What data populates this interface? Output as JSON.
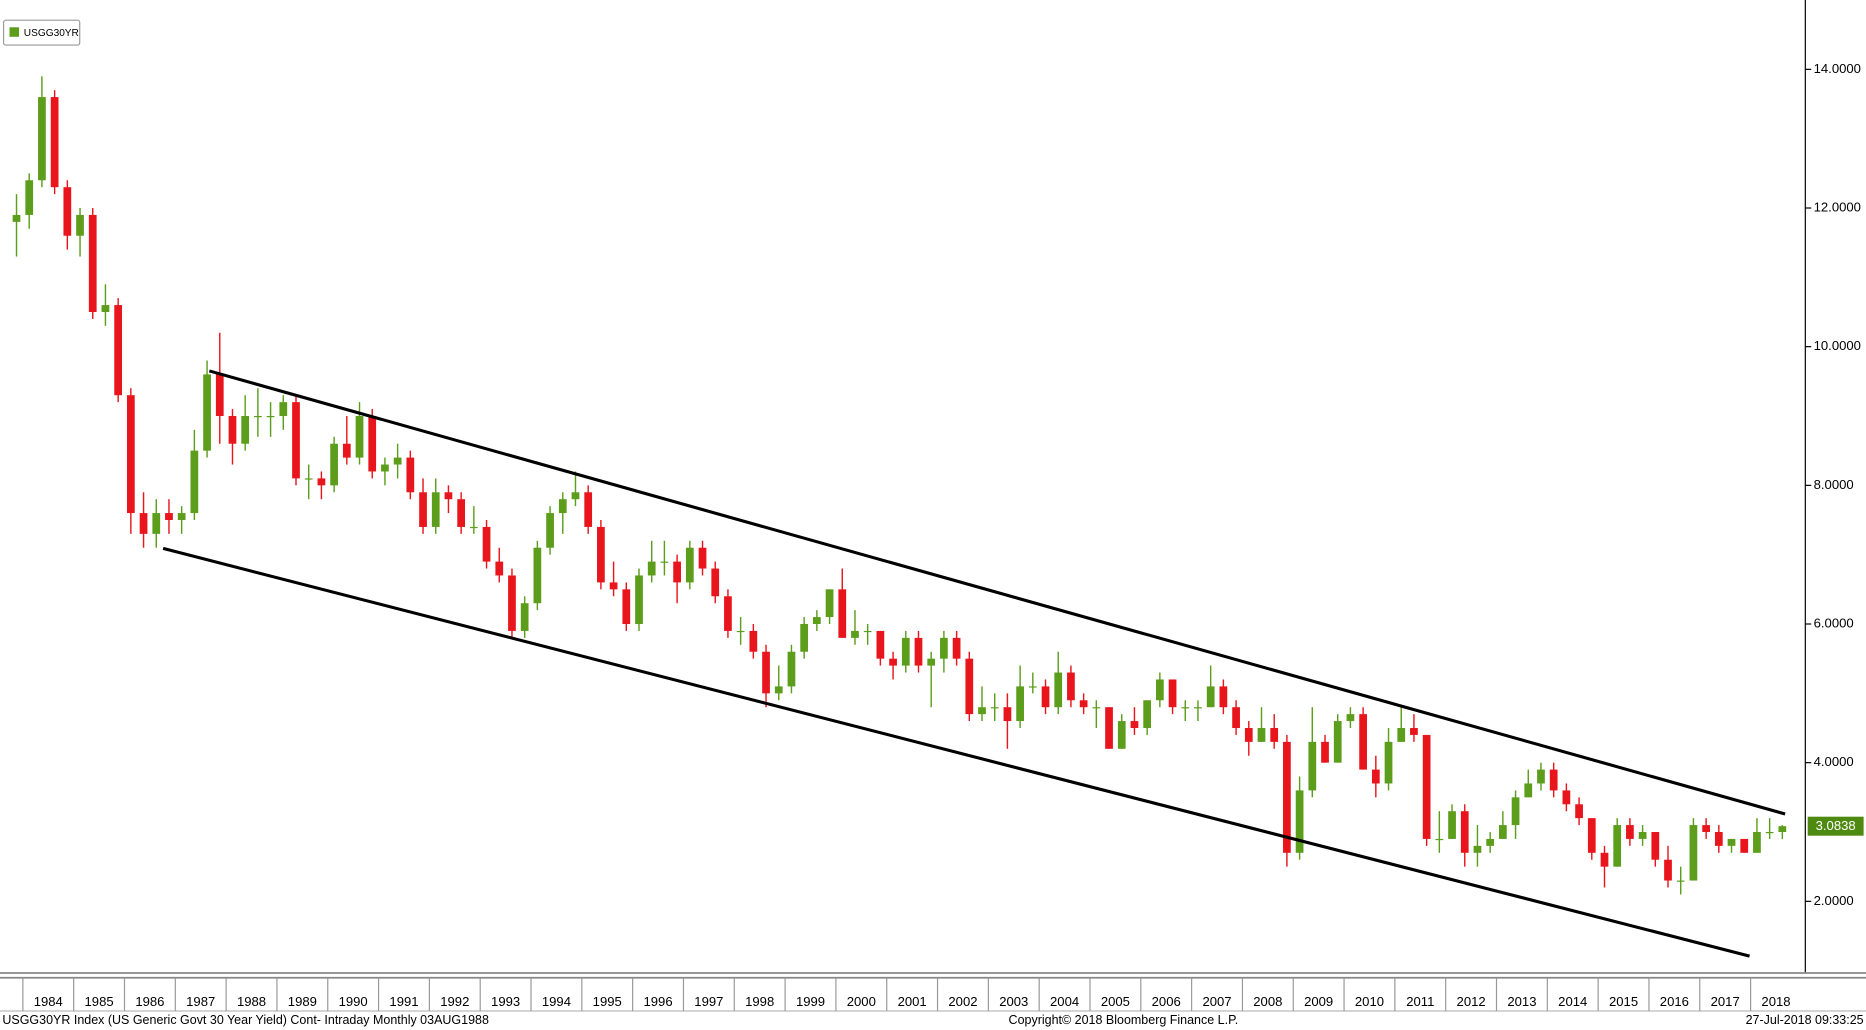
{
  "chart_data": {
    "type": "candlestick",
    "legend": "USGG30YR",
    "footer_left": "USGG30YR Index (US Generic Govt 30 Year Yield) Cont- Intraday  Monthly 03AUG1988",
    "footer_center": "Copyright© 2018 Bloomberg Finance L.P.",
    "footer_right": "27-Jul-2018 09:33:25",
    "up_color": "#5c9e1c",
    "down_color": "#e8161c",
    "last_color": "#4f8a10",
    "xlim": [
      1983.55,
      2019.03
    ],
    "ylim": [
      1,
      15
    ],
    "yticks": [
      {
        "value": 2,
        "label": "2.0000"
      },
      {
        "value": 4,
        "label": "4.0000"
      },
      {
        "value": 6,
        "label": "6.0000"
      },
      {
        "value": 8,
        "label": "8.0000"
      },
      {
        "value": 10,
        "label": "10.0000"
      },
      {
        "value": 12,
        "label": "12.0000"
      },
      {
        "value": 14,
        "label": "14.0000"
      }
    ],
    "xticks": [
      1984,
      1985,
      1986,
      1987,
      1988,
      1989,
      1990,
      1991,
      1992,
      1993,
      1994,
      1995,
      1996,
      1997,
      1998,
      1999,
      2000,
      2001,
      2002,
      2003,
      2004,
      2005,
      2006,
      2007,
      2008,
      2009,
      2010,
      2011,
      2012,
      2013,
      2014,
      2015,
      2016,
      2017,
      2018
    ],
    "x": [
      1983.875,
      1984.125,
      1984.375,
      1984.625,
      1984.875,
      1985.125,
      1985.375,
      1985.625,
      1985.875,
      1986.125,
      1986.375,
      1986.625,
      1986.875,
      1987.125,
      1987.375,
      1987.625,
      1987.875,
      1988.125,
      1988.375,
      1988.625,
      1988.875,
      1989.125,
      1989.375,
      1989.625,
      1989.875,
      1990.125,
      1990.375,
      1990.625,
      1990.875,
      1991.125,
      1991.375,
      1991.625,
      1991.875,
      1992.125,
      1992.375,
      1992.625,
      1992.875,
      1993.125,
      1993.375,
      1993.625,
      1993.875,
      1994.125,
      1994.375,
      1994.625,
      1994.875,
      1995.125,
      1995.375,
      1995.625,
      1995.875,
      1996.125,
      1996.375,
      1996.625,
      1996.875,
      1997.125,
      1997.375,
      1997.625,
      1997.875,
      1998.125,
      1998.375,
      1998.625,
      1998.875,
      1999.125,
      1999.375,
      1999.625,
      1999.875,
      2000.125,
      2000.375,
      2000.625,
      2000.875,
      2001.125,
      2001.375,
      2001.625,
      2001.875,
      2002.125,
      2002.375,
      2002.625,
      2002.875,
      2003.125,
      2003.375,
      2003.625,
      2003.875,
      2004.125,
      2004.375,
      2004.625,
      2004.875,
      2005.125,
      2005.375,
      2005.625,
      2005.875,
      2006.125,
      2006.375,
      2006.625,
      2006.875,
      2007.125,
      2007.375,
      2007.625,
      2007.875,
      2008.125,
      2008.375,
      2008.625,
      2008.875,
      2009.125,
      2009.375,
      2009.625,
      2009.875,
      2010.125,
      2010.375,
      2010.625,
      2010.875,
      2011.125,
      2011.375,
      2011.625,
      2011.875,
      2012.125,
      2012.375,
      2012.625,
      2012.875,
      2013.125,
      2013.375,
      2013.625,
      2013.875,
      2014.125,
      2014.375,
      2014.625,
      2014.875,
      2015.125,
      2015.375,
      2015.625,
      2015.875,
      2016.125,
      2016.375,
      2016.625,
      2016.875,
      2017.125,
      2017.375,
      2017.625,
      2017.875,
      2018.125,
      2018.375,
      2018.625
    ],
    "ohlc": [
      [
        11.8,
        12.2,
        11.3,
        11.9
      ],
      [
        11.9,
        12.5,
        11.7,
        12.4
      ],
      [
        12.4,
        13.9,
        12.3,
        13.6
      ],
      [
        13.6,
        13.7,
        12.2,
        12.3
      ],
      [
        12.3,
        12.4,
        11.4,
        11.6
      ],
      [
        11.6,
        12.0,
        11.3,
        11.9
      ],
      [
        11.9,
        12.0,
        10.4,
        10.5
      ],
      [
        10.5,
        10.9,
        10.3,
        10.6
      ],
      [
        10.6,
        10.7,
        9.2,
        9.3
      ],
      [
        9.3,
        9.4,
        7.3,
        7.6
      ],
      [
        7.6,
        7.9,
        7.1,
        7.3
      ],
      [
        7.3,
        7.8,
        7.1,
        7.6
      ],
      [
        7.6,
        7.8,
        7.3,
        7.5
      ],
      [
        7.5,
        7.7,
        7.3,
        7.6
      ],
      [
        7.6,
        8.8,
        7.5,
        8.5
      ],
      [
        8.5,
        9.8,
        8.4,
        9.6
      ],
      [
        9.6,
        10.2,
        8.6,
        9.0
      ],
      [
        9.0,
        9.1,
        8.3,
        8.6
      ],
      [
        8.6,
        9.3,
        8.5,
        9.0
      ],
      [
        9.0,
        9.4,
        8.7,
        9.0
      ],
      [
        9.0,
        9.2,
        8.7,
        9.0
      ],
      [
        9.0,
        9.3,
        8.8,
        9.2
      ],
      [
        9.2,
        9.3,
        8.0,
        8.1
      ],
      [
        8.1,
        8.3,
        7.8,
        8.1
      ],
      [
        8.1,
        8.2,
        7.8,
        8.0
      ],
      [
        8.0,
        8.7,
        7.9,
        8.6
      ],
      [
        8.6,
        9.0,
        8.3,
        8.4
      ],
      [
        8.4,
        9.2,
        8.3,
        9.0
      ],
      [
        9.0,
        9.1,
        8.1,
        8.2
      ],
      [
        8.2,
        8.4,
        8.0,
        8.3
      ],
      [
        8.3,
        8.6,
        8.1,
        8.4
      ],
      [
        8.4,
        8.5,
        7.8,
        7.9
      ],
      [
        7.9,
        8.1,
        7.3,
        7.4
      ],
      [
        7.4,
        8.1,
        7.3,
        7.9
      ],
      [
        7.9,
        8.0,
        7.6,
        7.8
      ],
      [
        7.8,
        7.9,
        7.3,
        7.4
      ],
      [
        7.4,
        7.7,
        7.3,
        7.4
      ],
      [
        7.4,
        7.5,
        6.8,
        6.9
      ],
      [
        6.9,
        7.1,
        6.6,
        6.7
      ],
      [
        6.7,
        6.8,
        5.8,
        5.9
      ],
      [
        5.9,
        6.4,
        5.8,
        6.3
      ],
      [
        6.3,
        7.2,
        6.2,
        7.1
      ],
      [
        7.1,
        7.7,
        7.0,
        7.6
      ],
      [
        7.6,
        7.9,
        7.3,
        7.8
      ],
      [
        7.8,
        8.2,
        7.7,
        7.9
      ],
      [
        7.9,
        8.0,
        7.3,
        7.4
      ],
      [
        7.4,
        7.5,
        6.5,
        6.6
      ],
      [
        6.6,
        6.9,
        6.4,
        6.5
      ],
      [
        6.5,
        6.6,
        5.9,
        6.0
      ],
      [
        6.0,
        6.8,
        5.9,
        6.7
      ],
      [
        6.7,
        7.2,
        6.6,
        6.9
      ],
      [
        6.9,
        7.2,
        6.7,
        6.9
      ],
      [
        6.9,
        7.0,
        6.3,
        6.6
      ],
      [
        6.6,
        7.2,
        6.5,
        7.1
      ],
      [
        7.1,
        7.2,
        6.7,
        6.8
      ],
      [
        6.8,
        6.9,
        6.3,
        6.4
      ],
      [
        6.4,
        6.5,
        5.8,
        5.9
      ],
      [
        5.9,
        6.1,
        5.7,
        5.9
      ],
      [
        5.9,
        6.0,
        5.5,
        5.6
      ],
      [
        5.6,
        5.7,
        4.8,
        5.0
      ],
      [
        5.0,
        5.4,
        4.9,
        5.1
      ],
      [
        5.1,
        5.7,
        5.0,
        5.6
      ],
      [
        5.6,
        6.1,
        5.5,
        6.0
      ],
      [
        6.0,
        6.2,
        5.9,
        6.1
      ],
      [
        6.1,
        6.5,
        6.0,
        6.5
      ],
      [
        6.5,
        6.8,
        5.8,
        5.8
      ],
      [
        5.8,
        6.2,
        5.7,
        5.9
      ],
      [
        5.9,
        6.0,
        5.7,
        5.9
      ],
      [
        5.9,
        5.9,
        5.4,
        5.5
      ],
      [
        5.5,
        5.6,
        5.2,
        5.4
      ],
      [
        5.4,
        5.9,
        5.3,
        5.8
      ],
      [
        5.8,
        5.9,
        5.3,
        5.4
      ],
      [
        5.4,
        5.6,
        4.8,
        5.5
      ],
      [
        5.5,
        5.9,
        5.3,
        5.8
      ],
      [
        5.8,
        5.9,
        5.4,
        5.5
      ],
      [
        5.5,
        5.6,
        4.6,
        4.7
      ],
      [
        4.7,
        5.1,
        4.6,
        4.8
      ],
      [
        4.8,
        5.0,
        4.6,
        4.8
      ],
      [
        4.8,
        5.0,
        4.2,
        4.6
      ],
      [
        4.6,
        5.4,
        4.5,
        5.1
      ],
      [
        5.1,
        5.3,
        5.0,
        5.1
      ],
      [
        5.1,
        5.2,
        4.7,
        4.8
      ],
      [
        4.8,
        5.6,
        4.7,
        5.3
      ],
      [
        5.3,
        5.4,
        4.8,
        4.9
      ],
      [
        4.9,
        5.0,
        4.7,
        4.8
      ],
      [
        4.8,
        4.9,
        4.5,
        4.8
      ],
      [
        4.8,
        4.8,
        4.2,
        4.2
      ],
      [
        4.2,
        4.7,
        4.2,
        4.6
      ],
      [
        4.6,
        4.8,
        4.4,
        4.5
      ],
      [
        4.5,
        4.9,
        4.4,
        4.9
      ],
      [
        4.9,
        5.3,
        4.8,
        5.2
      ],
      [
        5.2,
        5.2,
        4.7,
        4.8
      ],
      [
        4.8,
        4.9,
        4.6,
        4.8
      ],
      [
        4.8,
        4.9,
        4.6,
        4.8
      ],
      [
        4.8,
        5.4,
        4.8,
        5.1
      ],
      [
        5.1,
        5.2,
        4.7,
        4.8
      ],
      [
        4.8,
        4.9,
        4.4,
        4.5
      ],
      [
        4.5,
        4.6,
        4.1,
        4.3
      ],
      [
        4.3,
        4.8,
        4.3,
        4.5
      ],
      [
        4.5,
        4.7,
        4.2,
        4.3
      ],
      [
        4.3,
        4.4,
        2.5,
        2.7
      ],
      [
        2.7,
        3.8,
        2.6,
        3.6
      ],
      [
        3.6,
        4.8,
        3.5,
        4.3
      ],
      [
        4.3,
        4.4,
        4.0,
        4.0
      ],
      [
        4.0,
        4.7,
        4.0,
        4.6
      ],
      [
        4.6,
        4.8,
        4.5,
        4.7
      ],
      [
        4.7,
        4.8,
        3.9,
        3.9
      ],
      [
        3.9,
        4.1,
        3.5,
        3.7
      ],
      [
        3.7,
        4.5,
        3.6,
        4.3
      ],
      [
        4.3,
        4.8,
        4.3,
        4.5
      ],
      [
        4.5,
        4.7,
        4.3,
        4.4
      ],
      [
        4.4,
        4.4,
        2.8,
        2.9
      ],
      [
        2.9,
        3.3,
        2.7,
        2.9
      ],
      [
        2.9,
        3.4,
        2.9,
        3.3
      ],
      [
        3.3,
        3.4,
        2.5,
        2.7
      ],
      [
        2.7,
        3.1,
        2.5,
        2.8
      ],
      [
        2.8,
        3.0,
        2.7,
        2.9
      ],
      [
        2.9,
        3.3,
        2.9,
        3.1
      ],
      [
        3.1,
        3.6,
        2.9,
        3.5
      ],
      [
        3.5,
        3.9,
        3.5,
        3.7
      ],
      [
        3.7,
        4.0,
        3.6,
        3.9
      ],
      [
        3.9,
        4.0,
        3.5,
        3.6
      ],
      [
        3.6,
        3.7,
        3.3,
        3.4
      ],
      [
        3.4,
        3.5,
        3.1,
        3.2
      ],
      [
        3.2,
        3.2,
        2.6,
        2.7
      ],
      [
        2.7,
        2.8,
        2.2,
        2.5
      ],
      [
        2.5,
        3.2,
        2.5,
        3.1
      ],
      [
        3.1,
        3.2,
        2.8,
        2.9
      ],
      [
        2.9,
        3.1,
        2.8,
        3.0
      ],
      [
        3.0,
        3.0,
        2.5,
        2.6
      ],
      [
        2.6,
        2.8,
        2.2,
        2.3
      ],
      [
        2.3,
        2.5,
        2.1,
        2.3
      ],
      [
        2.3,
        3.2,
        2.3,
        3.1
      ],
      [
        3.1,
        3.2,
        2.9,
        3.0
      ],
      [
        3.0,
        3.1,
        2.7,
        2.8
      ],
      [
        2.8,
        2.9,
        2.7,
        2.9
      ],
      [
        2.9,
        2.9,
        2.7,
        2.7
      ],
      [
        2.7,
        3.2,
        2.7,
        3.0
      ],
      [
        3.0,
        3.2,
        2.9,
        3.0
      ],
      [
        3.0,
        3.1,
        2.9,
        3.0838
      ]
    ],
    "trend_lines": [
      {
        "x": [
          1987.67,
          2018.68
        ],
        "y": [
          9.65,
          3.26
        ]
      },
      {
        "x": [
          1986.76,
          2017.98
        ],
        "y": [
          7.09,
          1.21
        ]
      }
    ]
  }
}
